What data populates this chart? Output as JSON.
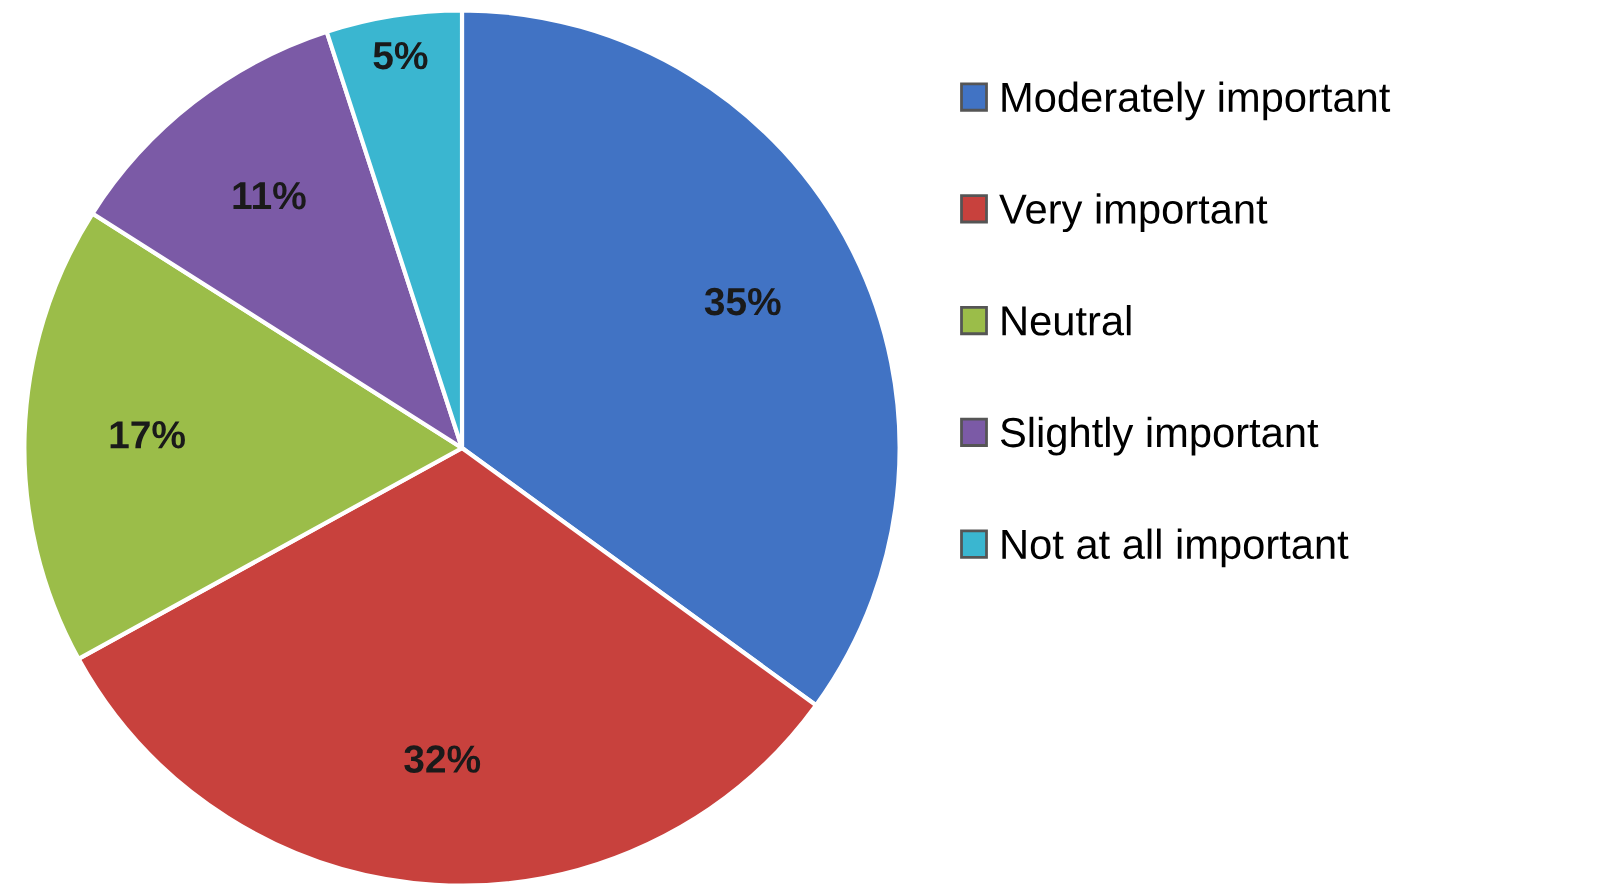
{
  "chart_data": {
    "type": "pie",
    "categories": [
      "Moderately important",
      "Very important",
      "Neutral",
      "Slightly important",
      "Not at all important"
    ],
    "values": [
      35,
      32,
      17,
      11,
      5
    ],
    "colors": [
      "#4173c4",
      "#c8413d",
      "#9bbd49",
      "#7b5aa6",
      "#3ab6d0"
    ],
    "value_labels": [
      "35%",
      "32%",
      "17%",
      "11%",
      "5%"
    ],
    "legend": "right"
  }
}
